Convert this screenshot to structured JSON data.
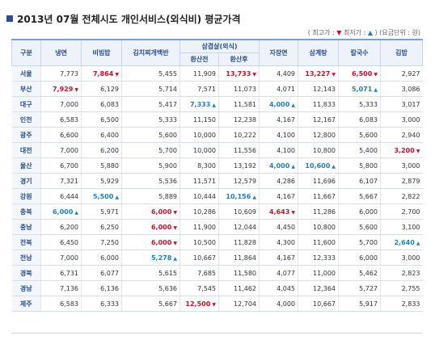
{
  "title": "2013년 07월 전체시도 개인서비스(외식비) 평균가격",
  "legend": {
    "prefix": "( 최고가 : ",
    "high_mark": "▼",
    "middle": " 최저가 : ",
    "low_mark": "▲",
    "suffix": " ) (요금단위 : 원)"
  },
  "colors": {
    "high": "#c8102e",
    "low": "#1e7fc2",
    "header_text": "#2a4f8c"
  },
  "headers": {
    "region": "구분",
    "naengmyeon": "냉면",
    "bibimbap": "비빔밥",
    "kimchi_jjigae": "김치찌개백반",
    "samgyeopsal": "삼겹살(외식)",
    "before": "환산전",
    "after": "환산후",
    "jajangmyeon": "자장면",
    "samgyetang": "삼계탕",
    "kalguksu": "칼국수",
    "gimbap": "김밥"
  },
  "rows": [
    {
      "region": "서울",
      "values": [
        "7,773",
        "7,864",
        "5,455",
        "11,909",
        "13,733",
        "4,409",
        "13,227",
        "6,500",
        "2,927"
      ],
      "marks": [
        "",
        "high",
        "",
        "",
        "high",
        "",
        "high",
        "high",
        ""
      ]
    },
    {
      "region": "부산",
      "values": [
        "7,929",
        "6,129",
        "5,714",
        "7,571",
        "11,073",
        "4,071",
        "12,143",
        "5,071",
        "3,086"
      ],
      "marks": [
        "high",
        "",
        "",
        "",
        "",
        "",
        "",
        "low",
        ""
      ]
    },
    {
      "region": "대구",
      "values": [
        "7,000",
        "6,083",
        "5,417",
        "7,333",
        "11,581",
        "4,000",
        "11,833",
        "5,333",
        "3,017"
      ],
      "marks": [
        "",
        "",
        "",
        "low",
        "",
        "low",
        "",
        "",
        ""
      ]
    },
    {
      "region": "인천",
      "values": [
        "6,583",
        "6,500",
        "5,333",
        "11,150",
        "12,238",
        "4,167",
        "12,167",
        "6,083",
        "3,000"
      ],
      "marks": [
        "",
        "",
        "",
        "",
        "",
        "",
        "",
        "",
        ""
      ]
    },
    {
      "region": "광주",
      "values": [
        "6,600",
        "6,400",
        "5,600",
        "10,000",
        "10,222",
        "4,100",
        "12,800",
        "5,600",
        "2,940"
      ],
      "marks": [
        "",
        "",
        "",
        "",
        "",
        "",
        "",
        "",
        ""
      ]
    },
    {
      "region": "대전",
      "values": [
        "7,000",
        "6,200",
        "5,700",
        "10,000",
        "11,556",
        "4,100",
        "10,800",
        "5,400",
        "3,200"
      ],
      "marks": [
        "",
        "",
        "",
        "",
        "",
        "",
        "",
        "",
        "high"
      ]
    },
    {
      "region": "울산",
      "values": [
        "6,700",
        "5,880",
        "5,900",
        "8,300",
        "13,192",
        "4,000",
        "10,600",
        "5,800",
        "3,000"
      ],
      "marks": [
        "",
        "",
        "",
        "",
        "",
        "low",
        "low",
        "",
        ""
      ]
    },
    {
      "region": "경기",
      "values": [
        "7,321",
        "5,929",
        "5,536",
        "11,571",
        "12,579",
        "4,286",
        "11,696",
        "6,107",
        "2,879"
      ],
      "marks": [
        "",
        "",
        "",
        "",
        "",
        "",
        "",
        "",
        ""
      ]
    },
    {
      "region": "강원",
      "values": [
        "6,444",
        "5,500",
        "5,889",
        "10,444",
        "10,156",
        "4,167",
        "11,667",
        "5,667",
        "2,822"
      ],
      "marks": [
        "",
        "low",
        "",
        "",
        "low",
        "",
        "",
        "",
        ""
      ]
    },
    {
      "region": "충북",
      "values": [
        "6,000",
        "5,971",
        "6,000",
        "10,286",
        "10,609",
        "4,643",
        "11,286",
        "6,000",
        "2,700"
      ],
      "marks": [
        "low",
        "",
        "high",
        "",
        "",
        "high",
        "",
        "",
        ""
      ]
    },
    {
      "region": "충남",
      "values": [
        "6,200",
        "6,250",
        "6,000",
        "11,900",
        "12,044",
        "4,450",
        "10,800",
        "5,600",
        "3,100"
      ],
      "marks": [
        "",
        "",
        "high",
        "",
        "",
        "",
        "",
        "",
        ""
      ]
    },
    {
      "region": "전북",
      "values": [
        "6,450",
        "7,250",
        "6,000",
        "10,500",
        "11,828",
        "4,300",
        "11,600",
        "5,700",
        "2,640"
      ],
      "marks": [
        "",
        "",
        "high",
        "",
        "",
        "",
        "",
        "",
        "low"
      ]
    },
    {
      "region": "전남",
      "values": [
        "7,000",
        "6,000",
        "5,278",
        "10,667",
        "11,864",
        "4,167",
        "12,333",
        "6,000",
        "3,000"
      ],
      "marks": [
        "",
        "",
        "low",
        "",
        "",
        "",
        "",
        "",
        ""
      ]
    },
    {
      "region": "경북",
      "values": [
        "6,731",
        "6,077",
        "5,615",
        "7,685",
        "11,580",
        "4,077",
        "11,000",
        "5,462",
        "2,823"
      ],
      "marks": [
        "",
        "",
        "",
        "",
        "",
        "",
        "",
        "",
        ""
      ]
    },
    {
      "region": "경남",
      "values": [
        "7,136",
        "6,136",
        "5,636",
        "7,545",
        "11,462",
        "4,045",
        "12,364",
        "5,727",
        "2,755"
      ],
      "marks": [
        "",
        "",
        "",
        "",
        "",
        "",
        "",
        "",
        ""
      ]
    },
    {
      "region": "제주",
      "values": [
        "6,583",
        "6,333",
        "5,667",
        "12,500",
        "12,704",
        "4,000",
        "10,667",
        "5,917",
        "2,833"
      ],
      "marks": [
        "",
        "",
        "",
        "high",
        "",
        "",
        "",
        "",
        ""
      ]
    }
  ]
}
